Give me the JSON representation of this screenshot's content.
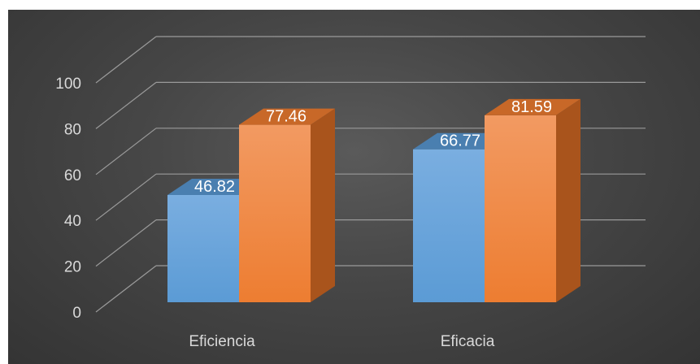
{
  "chart_data": {
    "type": "bar",
    "categories": [
      "Eficiencia",
      "Eficacia"
    ],
    "series": [
      {
        "values": [
          46.82,
          66.77
        ]
      },
      {
        "values": [
          77.46,
          81.59
        ]
      }
    ],
    "data_labels": [
      [
        "46.82",
        "66.77"
      ],
      [
        "77.46",
        "81.59"
      ]
    ],
    "title": "",
    "xlabel": "",
    "ylabel": "",
    "ylim": [
      0,
      100
    ],
    "yticks": [
      0,
      20,
      40,
      60,
      80,
      100
    ],
    "grid": true,
    "three_d": true,
    "colors": {
      "series1_front": "#5b9bd5",
      "series1_top": "#4a7fb0",
      "series1_side": "#3f6e9a",
      "series2_front": "#ed7d31",
      "series2_top": "#c86828",
      "series2_side": "#a9541c",
      "gridline": "#9a9a9a",
      "text": "#d9d9d9"
    }
  }
}
